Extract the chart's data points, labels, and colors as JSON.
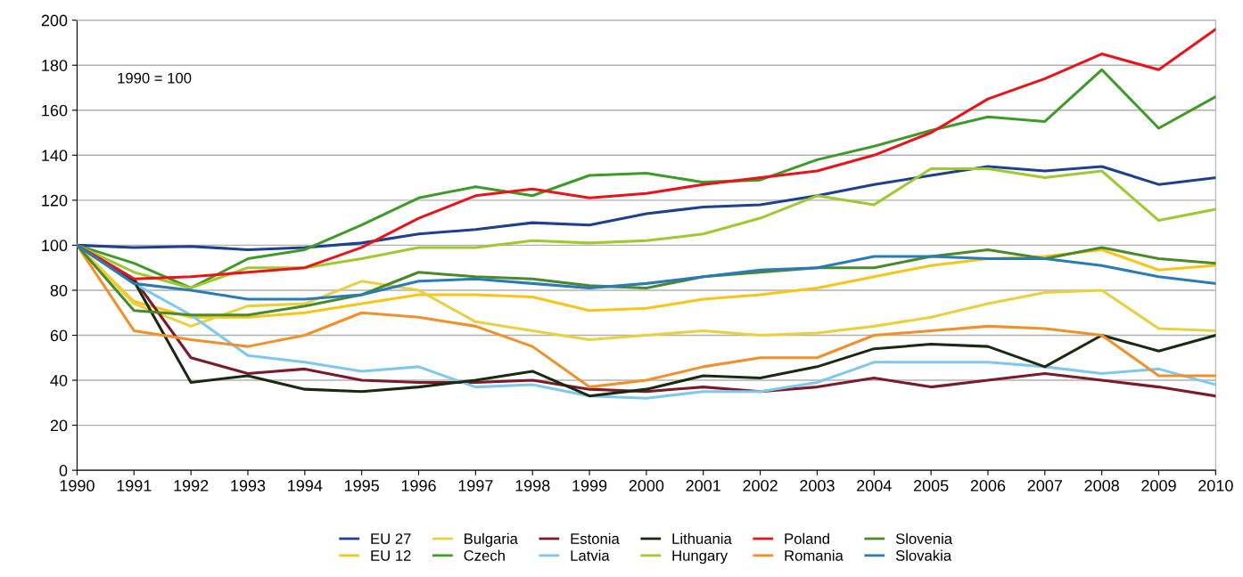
{
  "chart_data": {
    "type": "line",
    "categories": [
      "1990",
      "1991",
      "1992",
      "1993",
      "1994",
      "1995",
      "1996",
      "1997",
      "1998",
      "1999",
      "2000",
      "2001",
      "2002",
      "2003",
      "2004",
      "2005",
      "2006",
      "2007",
      "2008",
      "2009",
      "2010"
    ],
    "series": [
      {
        "name": "EU 27",
        "color": "#1f3f8f",
        "values": [
          100,
          99,
          99.5,
          98,
          99,
          101,
          105,
          107,
          110,
          109,
          114,
          117,
          118,
          122,
          127,
          131,
          135,
          133,
          135,
          127,
          130
        ]
      },
      {
        "name": "EU 12",
        "color": "#f5c518",
        "values": [
          100,
          75,
          68,
          68,
          70,
          74,
          78,
          78,
          77,
          71,
          72,
          76,
          78,
          81,
          86,
          91,
          94,
          95,
          98,
          89,
          91
        ]
      },
      {
        "name": "Bulgaria",
        "color": "#e8d040",
        "values": [
          100,
          74,
          64,
          73,
          74,
          84,
          80,
          66,
          62,
          58,
          60,
          62,
          60,
          61,
          64,
          68,
          74,
          79,
          80,
          63,
          62
        ]
      },
      {
        "name": "Czech",
        "color": "#3f9a2a",
        "values": [
          100,
          92,
          81,
          94,
          98,
          109,
          121,
          126,
          122,
          131,
          132,
          128,
          129,
          138,
          144,
          151,
          157,
          155,
          178,
          152,
          166
        ]
      },
      {
        "name": "Estonia",
        "color": "#7b1a2a",
        "values": [
          100,
          85,
          50,
          43,
          45,
          40,
          39,
          39,
          40,
          36,
          35,
          37,
          35,
          37,
          41,
          37,
          40,
          43,
          40,
          37,
          33
        ]
      },
      {
        "name": "Latvia",
        "color": "#7ec8f0",
        "values": [
          100,
          83,
          69,
          51,
          48,
          44,
          46,
          37,
          38,
          33,
          32,
          35,
          35,
          39,
          48,
          48,
          48,
          46,
          43,
          45,
          38
        ]
      },
      {
        "name": "Lithuania",
        "color": "#1a2a10",
        "values": [
          100,
          84,
          39,
          42,
          36,
          35,
          37,
          40,
          44,
          33,
          36,
          42,
          41,
          46,
          54,
          56,
          55,
          46,
          60,
          53,
          60
        ]
      },
      {
        "name": "Hungary",
        "color": "#a0c830",
        "values": [
          100,
          88,
          81,
          90,
          90,
          94,
          99,
          99,
          102,
          101,
          102,
          105,
          112,
          122,
          118,
          134,
          134,
          130,
          133,
          111,
          116
        ]
      },
      {
        "name": "Poland",
        "color": "#e8141c",
        "values": [
          100,
          85,
          86,
          88,
          90,
          99,
          112,
          122,
          125,
          121,
          123,
          127,
          130,
          133,
          140,
          150,
          165,
          174,
          185,
          178,
          196
        ]
      },
      {
        "name": "Romania",
        "color": "#f0902a",
        "values": [
          100,
          62,
          58,
          55,
          60,
          70,
          68,
          64,
          55,
          37,
          40,
          46,
          50,
          50,
          60,
          62,
          64,
          63,
          60,
          42,
          42
        ]
      },
      {
        "name": "Slovenia",
        "color": "#4a8a2a",
        "values": [
          100,
          71,
          69,
          69,
          73,
          78,
          88,
          86,
          85,
          82,
          81,
          86,
          88,
          90,
          90,
          95,
          98,
          94,
          99,
          94,
          92
        ]
      },
      {
        "name": "Slovakia",
        "color": "#2a7ab8",
        "values": [
          100,
          83,
          80,
          76,
          76,
          78,
          84,
          85,
          83,
          81,
          83,
          86,
          89,
          90,
          95,
          95,
          94,
          94,
          91,
          86,
          83
        ]
      }
    ],
    "ylim": [
      0,
      200
    ],
    "yticks": [
      0,
      20,
      40,
      60,
      80,
      100,
      120,
      140,
      160,
      180,
      200
    ],
    "grid": "y",
    "legend": "bottom",
    "marker": "none",
    "line_style": "solid",
    "annotations": [
      "1990 = 100"
    ]
  }
}
